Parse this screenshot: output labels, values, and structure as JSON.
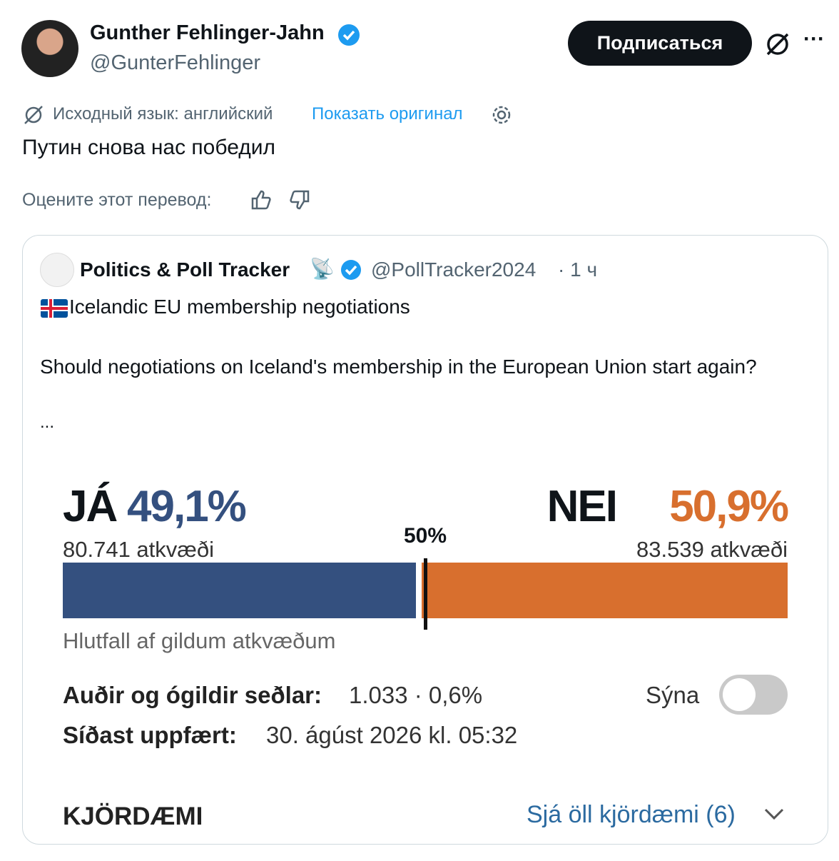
{
  "header": {
    "name": "Gunther Fehlinger-Jahn",
    "handle": "@GunterFehlinger",
    "follow": "Подписаться"
  },
  "translation": {
    "source": "Исходный язык: английский",
    "show_original": "Показать оригинал",
    "text": "Путин снова нас победил",
    "rate": "Оцените этот перевод:"
  },
  "quote": {
    "name": "Politics & Poll Tracker",
    "handle": "@PollTracker2024",
    "time": "· 1 ч",
    "title": "Icelandic EU membership negotiations",
    "question": "Should negotiations on Iceland's membership in the European Union start again?",
    "more": "..."
  },
  "poll": {
    "yes": {
      "label": "JÁ",
      "value": 49.1,
      "value_label": "49,1%",
      "votes": "80.741 atkvæði",
      "color": "#34507f"
    },
    "no": {
      "label": "NEI",
      "value": 50.9,
      "value_label": "50,9%",
      "votes": "83.539 atkvæði",
      "color": "#d86f2e"
    },
    "midpoint": 50,
    "midpoint_label": "50%",
    "caption": "Hlutfall af gildum atkvæðum",
    "invalid_label": "Auðir og ógildir seðlar:",
    "invalid_value": "1.033 · 0,6%",
    "updated_label": "Síðast uppfært:",
    "updated_value": "30. ágúst 2026 kl. 05:32",
    "toggle": "Sýna",
    "districts": "KJÖRDÆMI",
    "districts_link": "Sjá öll kjördæmi (6)"
  }
}
